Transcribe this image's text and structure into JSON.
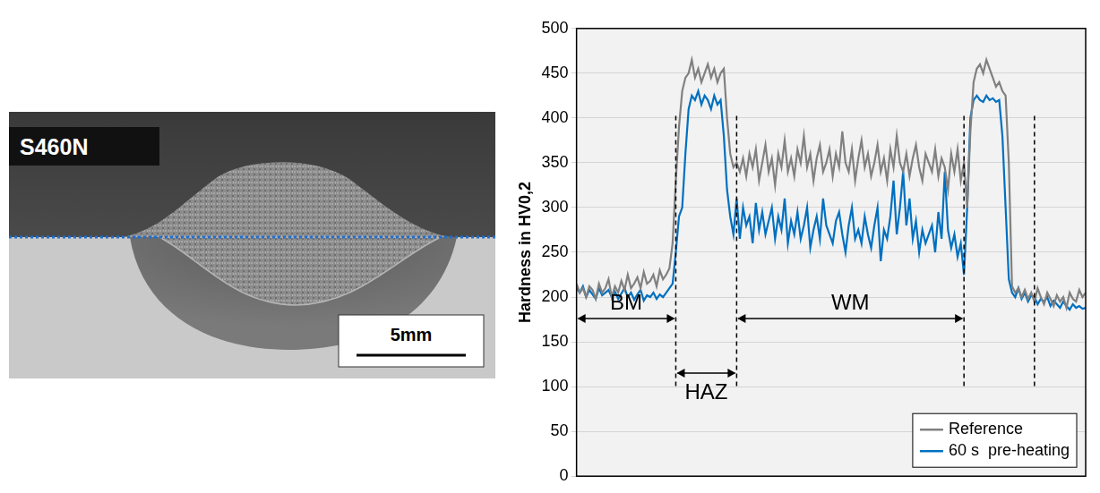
{
  "image": {
    "label": "S460N",
    "scale_bar": "5mm"
  },
  "chart_data": {
    "type": "line",
    "y_label": "Hardness in HV0,2",
    "x": [
      0,
      1,
      2,
      3,
      4,
      5,
      6,
      7,
      8,
      9,
      10,
      11,
      12,
      13,
      14,
      15,
      16,
      17,
      18,
      19,
      20,
      21,
      22,
      23,
      24,
      25,
      26,
      27,
      28,
      29,
      30,
      31,
      32,
      33,
      34,
      35,
      36,
      37,
      38,
      39,
      40,
      41,
      42,
      43,
      44,
      45,
      46,
      47,
      48,
      49,
      50,
      51,
      52,
      53,
      54,
      55,
      56,
      57,
      58,
      59,
      60,
      61,
      62,
      63,
      64,
      65,
      66,
      67,
      68,
      69,
      70,
      71,
      72,
      73,
      74,
      75,
      76,
      77,
      78,
      79,
      80,
      81,
      82,
      83,
      84,
      85,
      86,
      87,
      88,
      89,
      90,
      91,
      92,
      93,
      94,
      95,
      96,
      97,
      98,
      99,
      100,
      101,
      102,
      103,
      104,
      105,
      106,
      107,
      108,
      109,
      110,
      111,
      112,
      113,
      114,
      115,
      116,
      117,
      118,
      119,
      120,
      121,
      122,
      123,
      124,
      125,
      126,
      127,
      128,
      129,
      130,
      131,
      132,
      133,
      134,
      135,
      136,
      137,
      138,
      139,
      140,
      141,
      142,
      143,
      144,
      145,
      146,
      147,
      148,
      149,
      150,
      151,
      152,
      153,
      154,
      155,
      156,
      157,
      158,
      159
    ],
    "series": [
      {
        "name": "Reference",
        "color": "#808080",
        "values": [
          215,
          205,
          210,
          200,
          212,
          208,
          198,
          215,
          205,
          210,
          220,
          200,
          212,
          205,
          218,
          208,
          225,
          210,
          215,
          222,
          210,
          228,
          215,
          218,
          225,
          212,
          230,
          220,
          225,
          232,
          260,
          330,
          390,
          430,
          445,
          450,
          465,
          445,
          455,
          440,
          450,
          460,
          445,
          455,
          440,
          450,
          455,
          400,
          360,
          345,
          350,
          340,
          355,
          335,
          360,
          345,
          365,
          330,
          350,
          370,
          340,
          355,
          325,
          360,
          345,
          375,
          340,
          355,
          335,
          365,
          350,
          380,
          345,
          360,
          330,
          355,
          370,
          340,
          350,
          365,
          335,
          360,
          345,
          385,
          350,
          340,
          365,
          330,
          355,
          375,
          345,
          360,
          335,
          350,
          370,
          340,
          355,
          330,
          365,
          345,
          380,
          350,
          340,
          360,
          335,
          355,
          370,
          345,
          330,
          360,
          350,
          340,
          365,
          335,
          355,
          345,
          320,
          360,
          340,
          365,
          330,
          350,
          300,
          385,
          440,
          455,
          460,
          450,
          465,
          455,
          445,
          435,
          440,
          430,
          425,
          350,
          212,
          205,
          210,
          200,
          208,
          198,
          205,
          195,
          210,
          200,
          192,
          205,
          198,
          190,
          202,
          195,
          200,
          188,
          205,
          198,
          195,
          208,
          200,
          205
        ]
      },
      {
        "name": "60 s  pre-heating",
        "color": "#0070c0",
        "values": [
          210,
          205,
          212,
          200,
          208,
          203,
          198,
          210,
          202,
          205,
          208,
          200,
          206,
          198,
          204,
          210,
          200,
          205,
          197,
          203,
          208,
          196,
          202,
          200,
          205,
          198,
          203,
          200,
          205,
          210,
          215,
          250,
          290,
          300,
          360,
          410,
          425,
          420,
          430,
          415,
          425,
          420,
          410,
          425,
          415,
          420,
          380,
          320,
          290,
          270,
          310,
          265,
          300,
          280,
          290,
          260,
          305,
          275,
          295,
          270,
          285,
          300,
          265,
          290,
          275,
          310,
          260,
          285,
          270,
          295,
          265,
          280,
          300,
          255,
          275,
          290,
          265,
          310,
          280,
          270,
          260,
          285,
          295,
          270,
          250,
          280,
          300,
          265,
          275,
          260,
          290,
          270,
          255,
          280,
          300,
          240,
          275,
          265,
          290,
          330,
          270,
          300,
          340,
          280,
          310,
          265,
          285,
          250,
          275,
          260,
          270,
          280,
          250,
          295,
          265,
          340,
          275,
          255,
          270,
          245,
          260,
          225,
          300,
          400,
          420,
          425,
          420,
          418,
          425,
          420,
          422,
          418,
          420,
          380,
          300,
          220,
          205,
          200,
          210,
          198,
          205,
          195,
          202,
          200,
          192,
          198,
          195,
          200,
          190,
          196,
          192,
          188,
          195,
          190,
          186,
          192,
          188,
          190,
          187,
          188
        ]
      }
    ],
    "xlim": [
      0,
      159
    ],
    "ylim": [
      0,
      500
    ],
    "yticks": [
      0,
      50,
      100,
      150,
      200,
      250,
      300,
      350,
      400,
      450,
      500
    ],
    "grid": true,
    "legend": "lower right",
    "tick_labels": "y",
    "regions": [
      {
        "label": "BM",
        "from": 0,
        "to": 31
      },
      {
        "label": "HAZ",
        "from": 31,
        "to": 50
      },
      {
        "label": "WM",
        "from": 50,
        "to": 121
      }
    ],
    "boundaries": [
      31,
      50,
      121,
      143
    ]
  }
}
